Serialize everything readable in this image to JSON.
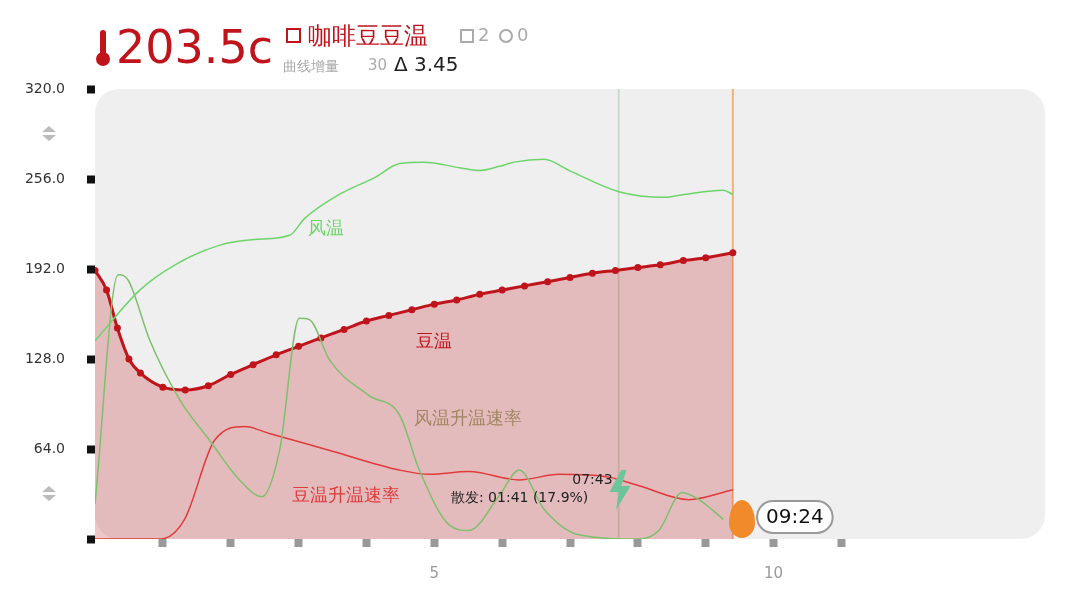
{
  "chart_data": {
    "type": "line",
    "title": "203.5c",
    "annotations": [
      "咖啡豆豆温",
      "2",
      "0",
      "曲线增量",
      "30",
      "Δ 3.45",
      "散发: 01:41 (17.9%)",
      "07:43"
    ],
    "xlim": [
      0,
      14
    ],
    "xticks": [
      {
        "value": 1,
        "label": null
      },
      {
        "value": 2,
        "label": null
      },
      {
        "value": 3,
        "label": null
      },
      {
        "value": 4,
        "label": null
      },
      5,
      {
        "value": 6,
        "label": null
      },
      {
        "value": 7,
        "label": null
      },
      {
        "value": 8,
        "label": null
      },
      {
        "value": 9,
        "label": null
      },
      10,
      {
        "value": 11,
        "label": null
      }
    ],
    "ylim": [
      0,
      320
    ],
    "yticks": [
      {
        "value": 0,
        "label": null
      },
      {
        "value": 64,
        "label": "64.0"
      },
      {
        "value": 128,
        "label": "128.0"
      },
      {
        "value": 192,
        "label": "192.0"
      },
      {
        "value": 256,
        "label": "256.0"
      },
      {
        "value": 320,
        "label": "320.0"
      }
    ],
    "grid": false,
    "legend": false,
    "ref_lines": [
      {
        "axis": "x",
        "value": 7.7167,
        "color": "#c9dccc"
      },
      {
        "axis": "x",
        "value": 9.4,
        "label": "09:24",
        "color": "#f2b07a"
      }
    ],
    "series": [
      {
        "name": "风温",
        "type": "line",
        "color": "#6dd46a",
        "marker": "none",
        "x": [
          0,
          0.66,
          1.18,
          1.84,
          2.35,
          2.87,
          3.09,
          3.6,
          4.12,
          4.49,
          4.85,
          5.37,
          5.66,
          5.96,
          6.18,
          6.62,
          6.99,
          7.72,
          8.38,
          8.68,
          9.26,
          9.4
        ],
        "values": [
          141,
          177,
          195,
          209,
          213,
          216,
          228,
          245,
          257,
          267,
          268,
          264,
          262,
          265,
          268,
          270,
          262,
          247,
          243,
          245,
          248,
          245
        ]
      },
      {
        "name": "豆温",
        "type": "area",
        "color": "#c0141c",
        "marker": "circle",
        "x": [
          0,
          0.17,
          0.33,
          0.5,
          0.67,
          1,
          1.33,
          1.67,
          2,
          2.33,
          2.67,
          3,
          3.33,
          3.67,
          4,
          4.33,
          4.67,
          5,
          5.33,
          5.67,
          6,
          6.33,
          6.67,
          7,
          7.33,
          7.67,
          8,
          8.33,
          8.67,
          9,
          9.4
        ],
        "values": [
          191,
          177,
          150,
          128,
          118,
          108,
          106,
          109,
          117,
          124,
          131,
          137,
          143,
          149,
          155,
          159,
          163,
          167,
          170,
          174,
          177,
          180,
          183,
          186,
          189,
          191,
          193,
          195,
          198,
          200,
          203.5
        ]
      },
      {
        "name": "风温升温速率",
        "type": "line",
        "color": "#7fbf6e",
        "marker": "none",
        "x": [
          0,
          0.34,
          0.49,
          0.81,
          1.25,
          1.69,
          2.13,
          2.46,
          2.72,
          3.01,
          3.16,
          3.46,
          4.04,
          4.49,
          4.78,
          5.22,
          5.51,
          5.96,
          6.25,
          6.62,
          7.13,
          8.01,
          8.31,
          8.65,
          8.9,
          9.26
        ],
        "values": [
          25,
          188,
          184,
          141,
          99,
          70,
          42,
          30,
          63,
          157,
          156,
          127,
          102,
          88,
          49,
          10,
          6,
          31,
          49,
          21,
          3,
          0,
          6,
          33,
          28,
          14
        ]
      },
      {
        "name": "豆温升温速率",
        "type": "line",
        "color": "#e03a3a",
        "marker": "none",
        "x": [
          0,
          0.96,
          1.32,
          1.76,
          2.21,
          2.57,
          3.46,
          4.49,
          4.93,
          5.51,
          6.25,
          6.84,
          7.57,
          8.01,
          8.75,
          9.4
        ],
        "values": [
          0,
          0,
          14,
          70,
          80,
          75,
          63,
          49,
          46,
          48,
          42,
          46,
          44,
          38,
          28,
          35
        ]
      }
    ]
  }
}
